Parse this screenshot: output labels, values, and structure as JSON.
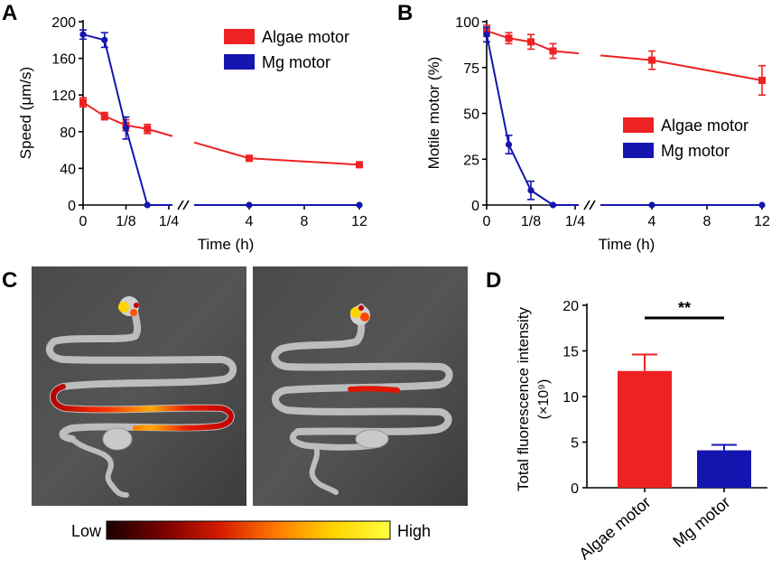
{
  "panels": {
    "a": "A",
    "b": "B",
    "c": "C",
    "d": "D"
  },
  "colors": {
    "algae": "#ee2222",
    "mg": "#1515b0",
    "black": "#000000"
  },
  "chart_data": [
    {
      "id": "A",
      "type": "line",
      "xlabel": "Time (h)",
      "ylabel": "Speed (μm/s)",
      "ylim": [
        0,
        200
      ],
      "yticks": [
        0,
        40,
        80,
        120,
        160,
        200
      ],
      "x_ticklabels": [
        "0",
        "1/8",
        "1/4",
        "4",
        "8",
        "12"
      ],
      "x_ticks_hours": [
        0,
        0.125,
        0.25,
        4,
        8,
        12
      ],
      "x_scale": "broken: linear 0–0.25 h, break, linear 0.25–12 h",
      "legend_position": "top-right",
      "series": [
        {
          "name": "Algae motor",
          "color": "#ee2222",
          "marker": "square",
          "x": [
            0,
            0.0625,
            0.125,
            0.1875,
            4,
            12
          ],
          "y": [
            112,
            97,
            87,
            83,
            51,
            44
          ],
          "err": [
            5,
            4,
            6,
            5,
            3,
            3
          ]
        },
        {
          "name": "Mg motor",
          "color": "#1515b0",
          "marker": "circle",
          "x": [
            0,
            0.0625,
            0.125,
            0.1875,
            4,
            12
          ],
          "y": [
            186,
            180,
            84,
            0,
            0,
            0
          ],
          "err": [
            5,
            8,
            12,
            0,
            0,
            0
          ]
        }
      ]
    },
    {
      "id": "B",
      "type": "line",
      "xlabel": "Time (h)",
      "ylabel": "Motile motor (%)",
      "ylim": [
        0,
        100
      ],
      "yticks": [
        0,
        25,
        50,
        75,
        100
      ],
      "x_ticklabels": [
        "0",
        "1/8",
        "1/4",
        "4",
        "8",
        "12"
      ],
      "x_ticks_hours": [
        0,
        0.125,
        0.25,
        4,
        8,
        12
      ],
      "x_scale": "broken: linear 0–0.25 h, break, linear 0.25–12 h",
      "legend_position": "center-right",
      "series": [
        {
          "name": "Algae motor",
          "color": "#ee2222",
          "marker": "square",
          "x": [
            0,
            0.0625,
            0.125,
            0.1875,
            4,
            12
          ],
          "y": [
            95,
            91,
            89,
            84,
            79,
            68
          ],
          "err": [
            3,
            3,
            4,
            4,
            5,
            8
          ]
        },
        {
          "name": "Mg motor",
          "color": "#1515b0",
          "marker": "circle",
          "x": [
            0,
            0.0625,
            0.125,
            0.1875,
            4,
            12
          ],
          "y": [
            93,
            33,
            8,
            0,
            0,
            0
          ],
          "err": [
            4,
            5,
            5,
            0,
            0,
            0
          ]
        }
      ]
    },
    {
      "id": "D",
      "type": "bar",
      "categories": [
        "Algae motor",
        "Mg motor"
      ],
      "values": [
        12.8,
        4.1
      ],
      "err": [
        1.8,
        0.6
      ],
      "colors": [
        "#ee2222",
        "#1515b0"
      ],
      "ylabel": "Total fluorescence intensity",
      "ylabel_unit": "(×10⁹)",
      "ylim": [
        0,
        20
      ],
      "yticks": [
        0,
        5,
        10,
        15,
        20
      ],
      "significance": "**"
    }
  ],
  "figure_c": {
    "colorbar_low": "Low",
    "colorbar_high": "High",
    "colorbar_stops": [
      "#1a0000",
      "#7a0000",
      "#d41b00",
      "#ff7a00",
      "#ffd400",
      "#ffff40"
    ]
  }
}
